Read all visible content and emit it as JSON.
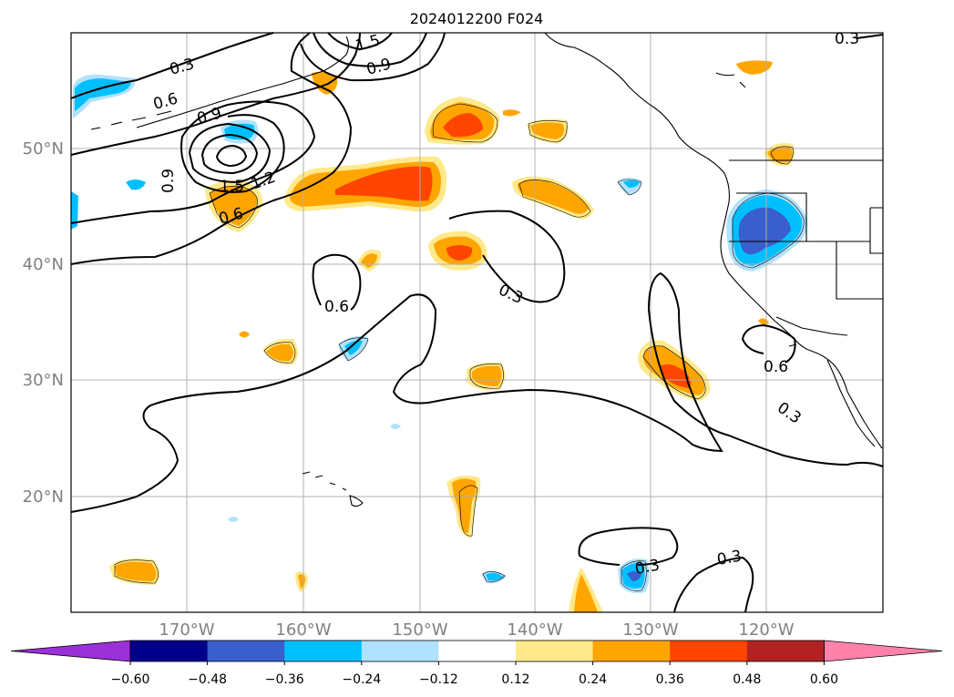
{
  "title": "2024012200 F024",
  "map": {
    "lon_labels": [
      "170°W",
      "160°W",
      "150°W",
      "140°W",
      "130°W",
      "120°W"
    ],
    "lat_labels": [
      "50°N",
      "40°N",
      "30°N",
      "20°N"
    ],
    "grid": true,
    "contour_labels": [
      "0.3",
      "0.6",
      "0.9",
      "1.5",
      "1.2",
      "0.6",
      "0.9",
      "0.3",
      "0.6",
      "0.3",
      "0.6",
      "0.3",
      "0.3",
      "0.3",
      "0.9",
      "1.5"
    ]
  },
  "colorbar": {
    "ticks": [
      "−0.60",
      "−0.48",
      "−0.36",
      "−0.24",
      "−0.12",
      "0.12",
      "0.24",
      "0.36",
      "0.48",
      "0.60"
    ],
    "colors": [
      "#9b30d9",
      "#00008b",
      "#3a5fcd",
      "#00bfff",
      "#b0e2ff",
      "#ffffff",
      "#ffe98a",
      "#ffa500",
      "#ff4500",
      "#b22222",
      "#ff82ab"
    ]
  }
}
